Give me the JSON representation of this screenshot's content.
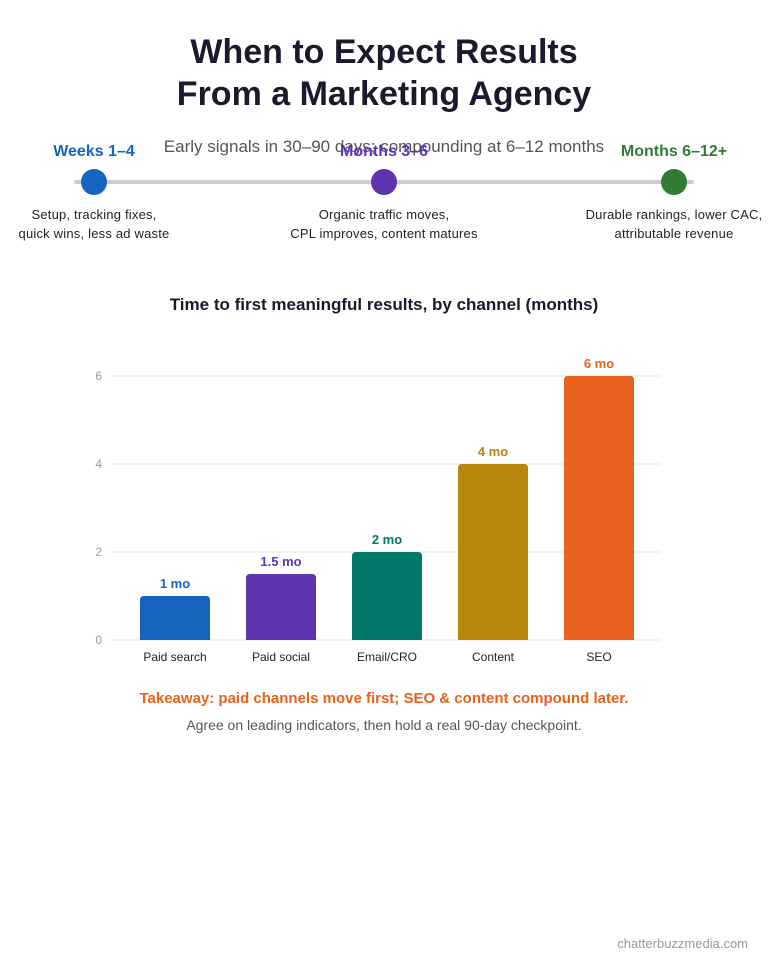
{
  "header": {
    "title_line1": "When to Expect Results",
    "title_line2": "From a Marketing Agency",
    "subtitle": "Early signals in 30–90 days; compounding at 6–12 months"
  },
  "timeline": {
    "milestones": [
      {
        "label": "Weeks 1–4",
        "desc_line1": "Setup, tracking fixes,",
        "desc_line2": "quick wins, less ad waste",
        "color": "#1565c0"
      },
      {
        "label": "Months 3–6",
        "desc_line1": "Organic traffic moves,",
        "desc_line2": "CPL improves, content matures",
        "color": "#5e35b1"
      },
      {
        "label": "Months 6–12+",
        "desc_line1": "Durable rankings, lower CAC,",
        "desc_line2": "attributable revenue",
        "color": "#2e7d32"
      }
    ]
  },
  "chart_data": {
    "type": "bar",
    "title": "Time to first meaningful results, by channel (months)",
    "categories": [
      "Paid search",
      "Paid social",
      "Email/CRO",
      "Content",
      "SEO"
    ],
    "values": [
      1,
      1.5,
      2,
      4,
      6
    ],
    "data_labels": [
      "1 mo",
      "1.5 mo",
      "2 mo",
      "4 mo",
      "6 mo"
    ],
    "colors": [
      "#1565c0",
      "#5e35b1",
      "#00796b",
      "#b8860b",
      "#e8611e"
    ],
    "ylim": [
      0,
      6
    ],
    "yticks": [
      0,
      2,
      4,
      6
    ],
    "xlabel": "",
    "ylabel": "",
    "grid": true,
    "legend": "none"
  },
  "takeaway": "Takeaway: paid channels move first; SEO & content compound later.",
  "note": "Agree on leading indicators, then hold a real 90-day checkpoint.",
  "footer": "chatterbuzzmedia.com"
}
